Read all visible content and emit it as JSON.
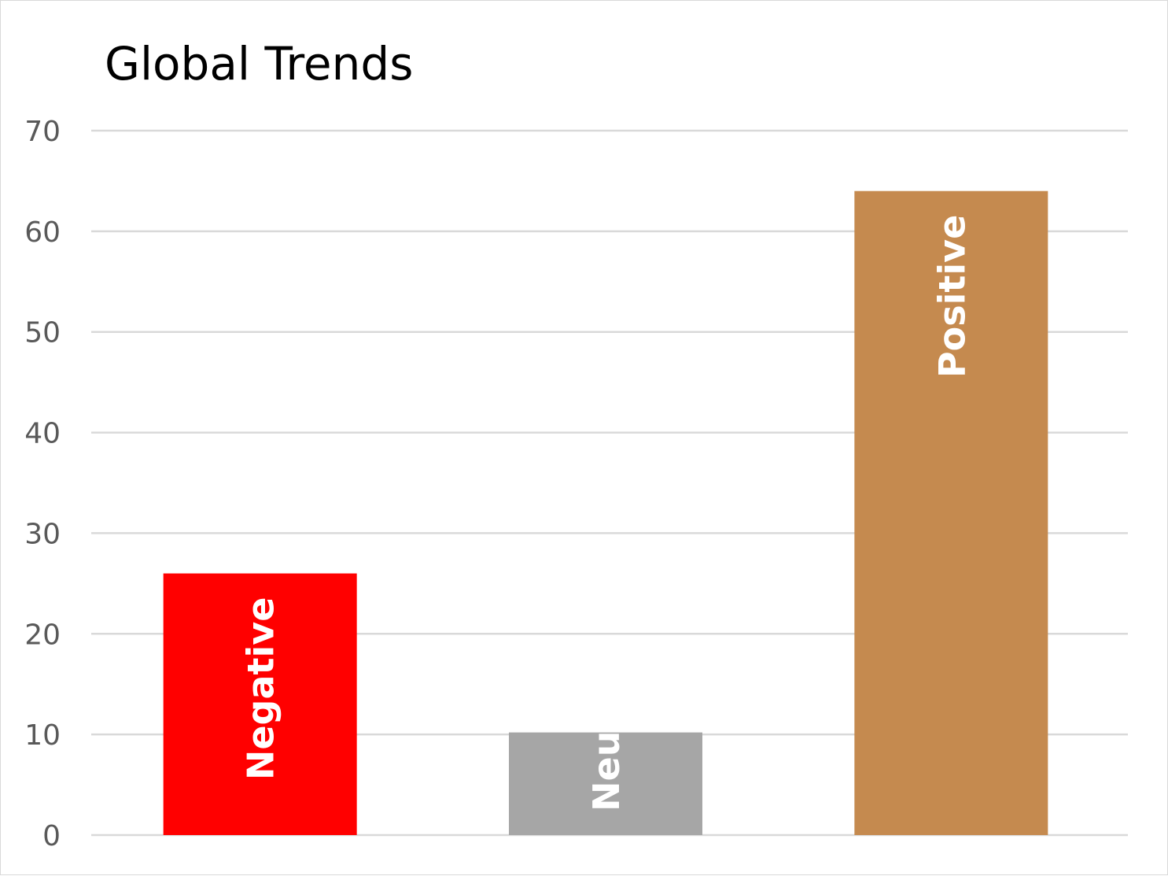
{
  "chart_data": {
    "type": "bar",
    "title": "Global Trends",
    "categories": [
      "Negative",
      "Neutral",
      "Positive"
    ],
    "values": [
      26,
      10.2,
      64
    ],
    "colors": [
      "#ff0000",
      "#a6a6a6",
      "#c58a4f"
    ],
    "xlabel": "",
    "ylabel": "",
    "ylim": [
      0,
      70
    ],
    "yticks": [
      "0",
      "10",
      "20",
      "30",
      "40",
      "50",
      "60",
      "70"
    ],
    "grid": true,
    "legend": "none",
    "data_labels": "category names inside bars, rotated vertically"
  }
}
